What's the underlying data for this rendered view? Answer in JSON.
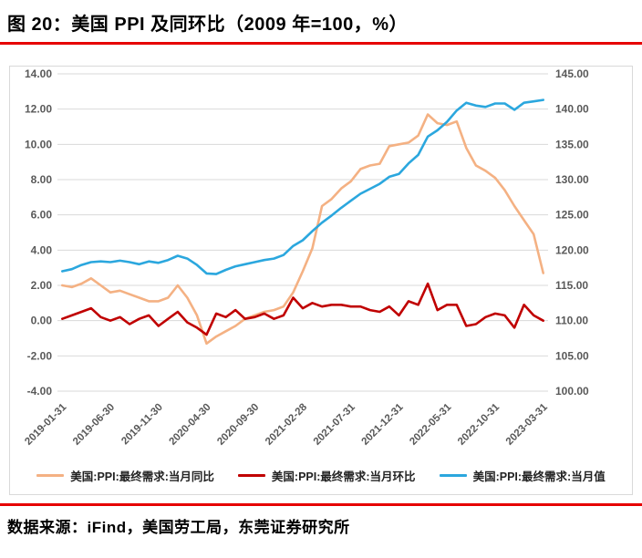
{
  "title": "图 20：美国 PPI 及同环比（2009 年=100，%）",
  "source": "数据来源：iFind，美国劳工局，东莞证券研究所",
  "colors": {
    "yoy": "#F4B183",
    "mom": "#C00000",
    "value": "#2BA7DE",
    "rule_red": "#E60000",
    "grid": "#D9D9D9",
    "axis_text": "#595959",
    "frame_border": "#D9D9D9"
  },
  "chart_data": {
    "type": "line",
    "points": 51,
    "x_frequency": "monthly",
    "x_tick_labels": [
      "2019-01-31",
      "2019-06-30",
      "2019-11-30",
      "2020-04-30",
      "2020-09-30",
      "2021-02-28",
      "2021-07-31",
      "2021-12-31",
      "2022-05-31",
      "2022-10-31",
      "2023-03-31"
    ],
    "x_tick_indices": [
      0,
      5,
      10,
      15,
      20,
      25,
      30,
      35,
      40,
      45,
      50
    ],
    "left_axis": {
      "min": -4,
      "max": 14,
      "step": 2,
      "ticks": [
        "14.00",
        "12.00",
        "10.00",
        "8.00",
        "6.00",
        "4.00",
        "2.00",
        "0.00",
        "-2.00",
        "-4.00"
      ]
    },
    "right_axis": {
      "min": 100,
      "max": 145,
      "step": 5,
      "ticks": [
        "145.00",
        "140.00",
        "135.00",
        "130.00",
        "125.00",
        "120.00",
        "115.00",
        "110.00",
        "105.00",
        "100.00"
      ]
    },
    "grid": true,
    "legend_position": "bottom",
    "series": [
      {
        "name": "美国:PPI:最终需求:当月同比",
        "axis": "left",
        "color": "#F4B183",
        "values": [
          2.0,
          1.9,
          2.1,
          2.4,
          2.0,
          1.6,
          1.7,
          1.5,
          1.3,
          1.1,
          1.1,
          1.3,
          2.0,
          1.3,
          0.3,
          -1.3,
          -0.9,
          -0.6,
          -0.3,
          0.1,
          0.3,
          0.5,
          0.6,
          0.8,
          1.6,
          2.8,
          4.1,
          6.5,
          6.9,
          7.5,
          7.9,
          8.6,
          8.8,
          8.9,
          9.9,
          10.0,
          10.1,
          10.5,
          11.7,
          11.2,
          11.1,
          11.3,
          9.8,
          8.8,
          8.5,
          8.1,
          7.4,
          6.5,
          5.7,
          4.9,
          2.7
        ]
      },
      {
        "name": "美国:PPI:最终需求:当月环比",
        "axis": "left",
        "color": "#C00000",
        "values": [
          0.1,
          0.3,
          0.5,
          0.7,
          0.2,
          0.0,
          0.2,
          -0.2,
          0.1,
          0.3,
          -0.3,
          0.1,
          0.5,
          -0.1,
          -0.4,
          -0.8,
          0.4,
          0.2,
          0.6,
          0.1,
          0.2,
          0.4,
          0.1,
          0.3,
          1.3,
          0.7,
          1.0,
          0.8,
          0.9,
          0.9,
          0.8,
          0.8,
          0.6,
          0.5,
          0.8,
          0.3,
          1.1,
          0.9,
          2.1,
          0.6,
          0.9,
          0.9,
          -0.3,
          -0.2,
          0.2,
          0.4,
          0.3,
          -0.4,
          0.9,
          0.3,
          0.0
        ]
      },
      {
        "name": "美国:PPI:最终需求:当月值",
        "axis": "right",
        "color": "#2BA7DE",
        "values": [
          117.0,
          117.3,
          117.9,
          118.3,
          118.4,
          118.3,
          118.5,
          118.3,
          118.0,
          118.4,
          118.2,
          118.6,
          119.2,
          118.8,
          117.9,
          116.7,
          116.6,
          117.2,
          117.7,
          118.0,
          118.3,
          118.6,
          118.8,
          119.3,
          120.6,
          121.4,
          122.7,
          123.9,
          124.9,
          126.0,
          127.0,
          128.0,
          128.7,
          129.4,
          130.4,
          130.8,
          132.3,
          133.5,
          136.1,
          137.0,
          138.2,
          139.8,
          140.9,
          140.5,
          140.3,
          140.8,
          140.8,
          139.9,
          140.9,
          141.1,
          141.3
        ]
      }
    ]
  }
}
